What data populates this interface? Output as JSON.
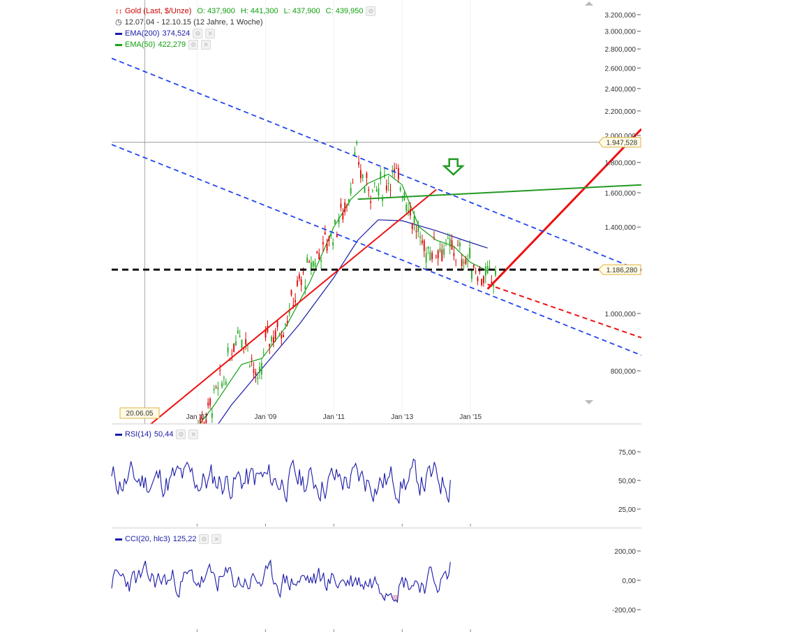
{
  "legend": {
    "instrument": "Gold (Last, $/Unze)",
    "ohlc": {
      "o": "O: 437,900",
      "h": "H: 441,300",
      "l": "L: 437,900",
      "c": "C: 439,950"
    },
    "period": "12.07.04 - 12.10.15 (12 Jahre, 1 Woche)",
    "ema200": "EMA(200)",
    "ema200_value": "374,524",
    "ema50": "EMA(50)",
    "ema50_value": "422,279"
  },
  "rsi_legend": {
    "name": "RSI(14)",
    "value": "50,44"
  },
  "cci_legend": {
    "name": "CCI(20, hlc3)",
    "value": "125,22"
  },
  "colors": {
    "price_up": "#22aa22",
    "price_down": "#dd0000",
    "ema200": "#1a1aa8",
    "ema50": "#18a018",
    "trend_red": "#ee1111",
    "channel_blue": "#2244ee",
    "resistance_green": "#229922",
    "indicator": "#1a1aa8"
  },
  "chart_data": [
    {
      "type": "line",
      "panel": "price",
      "y_scale": "log",
      "y_ticks": [
        "3.200,000",
        "3.000,000",
        "2.800,000",
        "2.600,000",
        "2.400,000",
        "2.200,000",
        "2.000,000",
        "1.800,000",
        "1.600,000",
        "1.400,000",
        "1.200,000",
        "1.000,000",
        "800,000"
      ],
      "y_tick_values": [
        3200,
        3000,
        2800,
        2600,
        2400,
        2200,
        2000,
        1800,
        1600,
        1400,
        1200,
        1000,
        800
      ],
      "x_ticks": [
        "Jan '07",
        "Jan '09",
        "Jan '11",
        "Jan '13",
        "Jan '15"
      ],
      "x_tick_years": [
        2007,
        2009,
        2011,
        2013,
        2015
      ],
      "crosshair_date": "20.06.05",
      "crosshair_price_label": "1.947,528",
      "last_price_label": "1.186,280",
      "series": [
        {
          "name": "EMA(200)",
          "x": [
            2007.2,
            2008.0,
            2009.0,
            2010.0,
            2011.0,
            2011.7,
            2012.3,
            2013.0,
            2014.0,
            2014.8,
            2015.5
          ],
          "values": [
            600,
            700,
            820,
            960,
            1150,
            1330,
            1440,
            1435,
            1380,
            1330,
            1290
          ]
        },
        {
          "name": "EMA(50)",
          "x": [
            2006.8,
            2007.5,
            2008.3,
            2008.9,
            2009.6,
            2010.3,
            2011.0,
            2011.5,
            2012.0,
            2012.6,
            2013.0,
            2013.5,
            2014.0,
            2014.5,
            2015.0,
            2015.5
          ],
          "values": [
            620,
            700,
            820,
            840,
            950,
            1130,
            1400,
            1560,
            1660,
            1720,
            1650,
            1400,
            1330,
            1300,
            1220,
            1180
          ]
        }
      ],
      "drawn_lines": [
        {
          "name": "red rising trendline",
          "x": [
            2005.5,
            2014.0
          ],
          "values": [
            640,
            1620
          ]
        },
        {
          "name": "red projection arrow",
          "x": [
            2015.5,
            2020.0
          ],
          "values": [
            1100,
            2050
          ]
        },
        {
          "name": "red dashed extension",
          "x": [
            2015.5,
            2020.0
          ],
          "values": [
            1120,
            910
          ]
        },
        {
          "name": "green resistance line",
          "x": [
            2011.7,
            2020.0
          ],
          "values": [
            1560,
            1650
          ]
        },
        {
          "name": "black dashed support",
          "x": [
            2004.5,
            2020.0
          ],
          "values": [
            1186.28,
            1186.28
          ]
        },
        {
          "name": "blue upper channel",
          "x": [
            2004.5,
            2020.0
          ],
          "values": [
            2700,
            1180
          ]
        },
        {
          "name": "blue lower channel",
          "x": [
            2004.5,
            2020.0
          ],
          "values": [
            1930,
            850
          ]
        }
      ]
    },
    {
      "type": "line",
      "panel": "RSI(14)",
      "y_ticks": [
        "75,00",
        "50,00",
        "25,00"
      ],
      "y_tick_values": [
        75,
        50,
        25
      ],
      "series": [
        {
          "name": "RSI(14)",
          "last_value": 50.44
        }
      ]
    },
    {
      "type": "line",
      "panel": "CCI(20, hlc3)",
      "y_ticks": [
        "200,00",
        "0,00",
        "-200,00"
      ],
      "y_tick_values": [
        200,
        0,
        -200
      ],
      "series": [
        {
          "name": "CCI(20, hlc3)",
          "last_value": 125.22
        }
      ]
    }
  ]
}
